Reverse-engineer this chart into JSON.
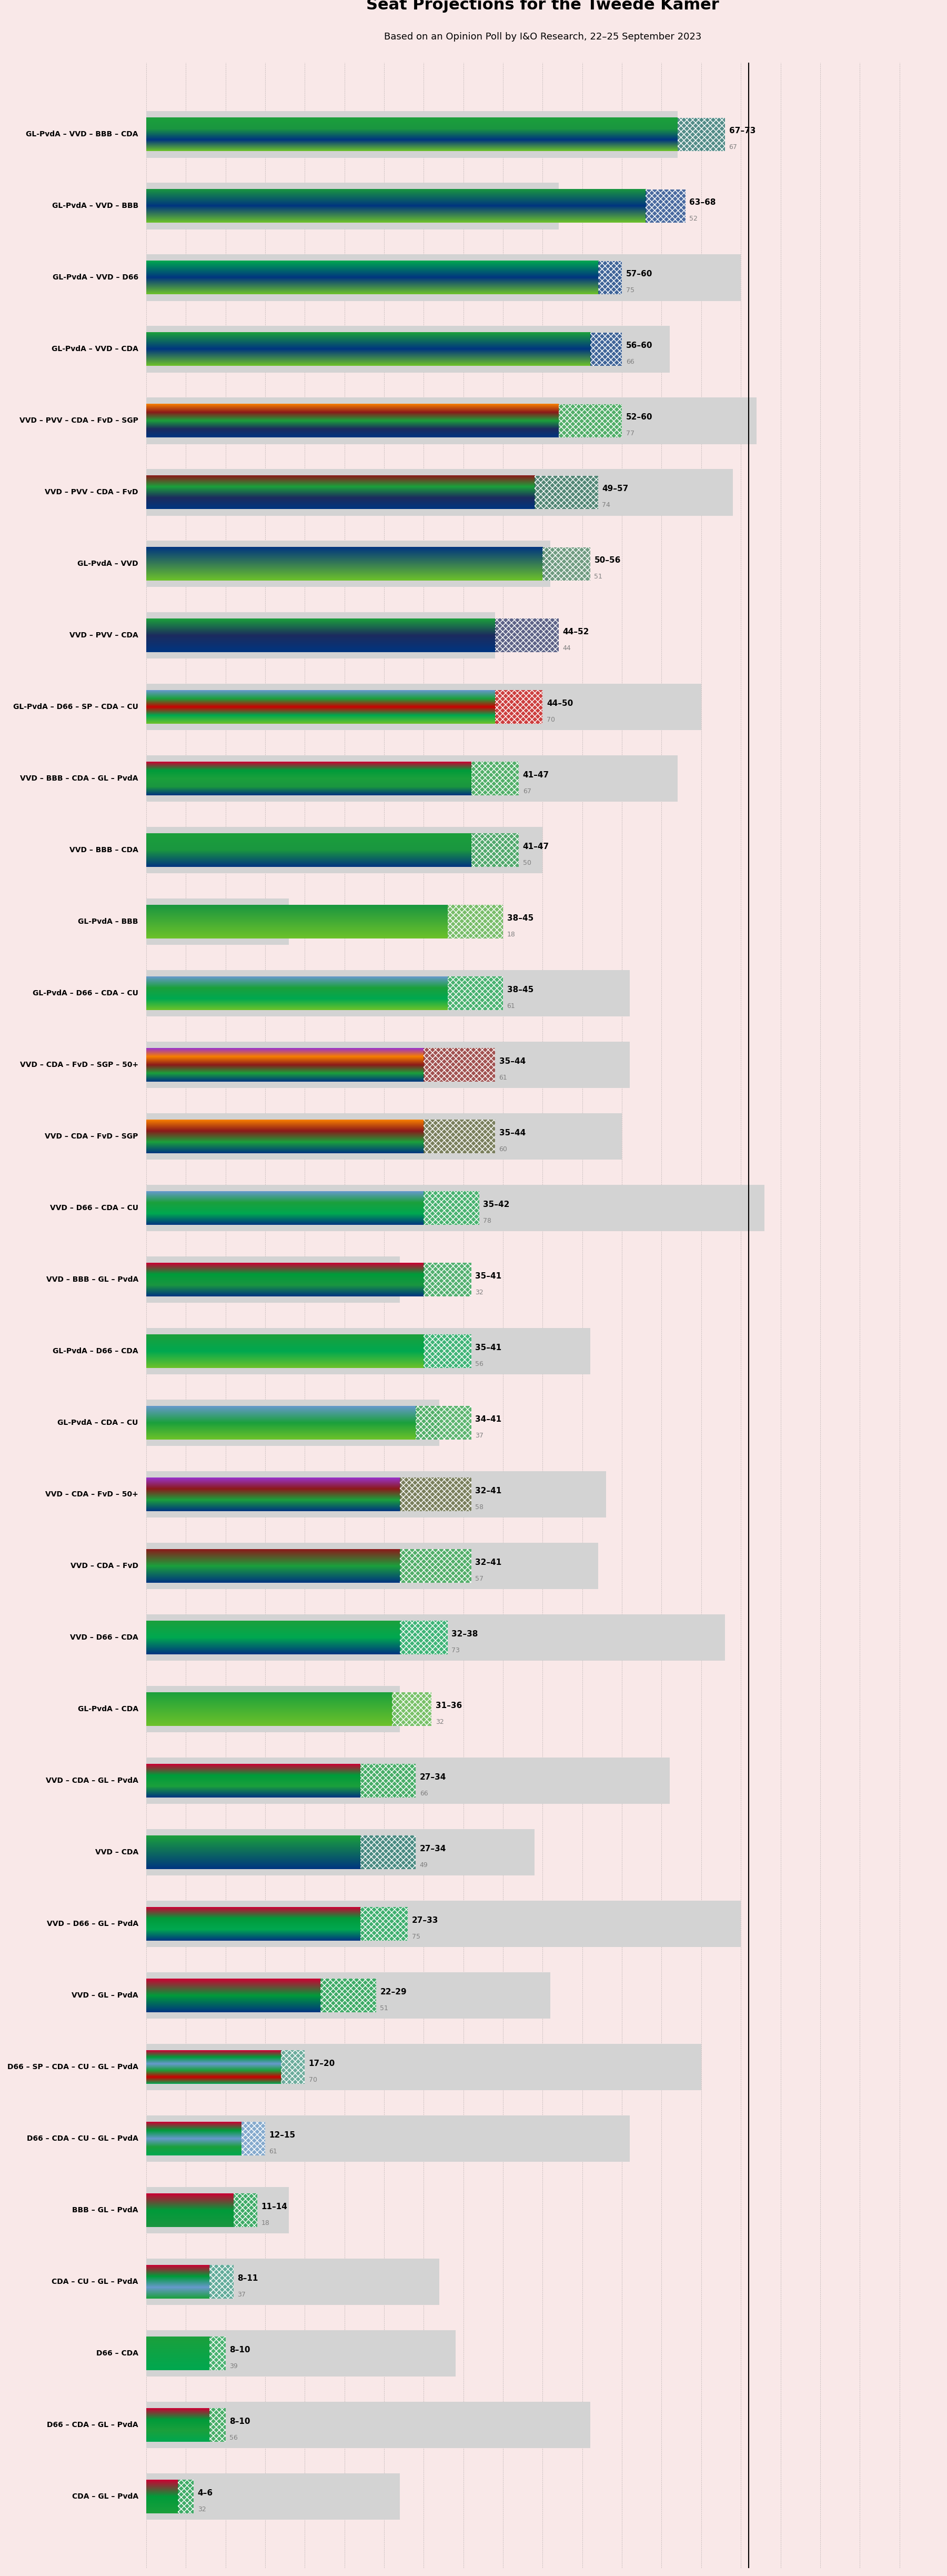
{
  "title": "Seat Projections for the Tweede Kamer",
  "subtitle": "Based on an Opinion Poll by I&O Research, 22–25 September 2023",
  "background_color": "#f9e8e8",
  "bar_height": 0.55,
  "majority_line": 76,
  "x_max": 100,
  "coalitions": [
    {
      "name": "GL-PvdA – VVD – BBB – CDA",
      "low": 67,
      "high": 73,
      "median": 67,
      "last": null,
      "underline": false,
      "colors": [
        "#6dc22a",
        "#003580",
        "#1a9640",
        "#1ba03c"
      ]
    },
    {
      "name": "GL-PvdA – VVD – BBB",
      "low": 63,
      "high": 68,
      "median": 52,
      "last": null,
      "underline": false,
      "colors": [
        "#6dc22a",
        "#003580",
        "#1a9640"
      ]
    },
    {
      "name": "GL-PvdA – VVD – D66",
      "low": 57,
      "high": 60,
      "median": 75,
      "last": null,
      "underline": false,
      "colors": [
        "#6dc22a",
        "#003580",
        "#00a850"
      ]
    },
    {
      "name": "GL-PvdA – VVD – CDA",
      "low": 56,
      "high": 60,
      "median": 66,
      "last": null,
      "underline": false,
      "colors": [
        "#6dc22a",
        "#003580",
        "#1ba03c"
      ]
    },
    {
      "name": "VVD – PVV – CDA – FvD – SGP",
      "low": 52,
      "high": 60,
      "median": 77,
      "last": null,
      "underline": false,
      "colors": [
        "#003580",
        "#1c2b5e",
        "#1ba03c",
        "#8b1a1a",
        "#f77f00"
      ]
    },
    {
      "name": "VVD – PVV – CDA – FvD",
      "low": 49,
      "high": 57,
      "median": 74,
      "last": null,
      "underline": false,
      "colors": [
        "#003580",
        "#1c2b5e",
        "#1ba03c",
        "#8b1a1a"
      ]
    },
    {
      "name": "GL-PvdA – VVD",
      "low": 50,
      "high": 56,
      "median": 51,
      "last": null,
      "underline": false,
      "colors": [
        "#6dc22a",
        "#003580"
      ]
    },
    {
      "name": "VVD – PVV – CDA",
      "low": 44,
      "high": 52,
      "median": 44,
      "last": null,
      "underline": false,
      "colors": [
        "#003580",
        "#1c2b5e",
        "#1ba03c"
      ]
    },
    {
      "name": "GL-PvdA – D66 – SP – CDA – CU",
      "low": 44,
      "high": 50,
      "median": 70,
      "last": null,
      "underline": false,
      "colors": [
        "#6dc22a",
        "#00a850",
        "#cc0000",
        "#1ba03c",
        "#6699cc"
      ]
    },
    {
      "name": "VVD – BBB – CDA – GL – PvdA",
      "low": 41,
      "high": 47,
      "median": 67,
      "last": null,
      "underline": false,
      "colors": [
        "#003580",
        "#1a9640",
        "#1ba03c",
        "#009b3a",
        "#cc0033"
      ]
    },
    {
      "name": "VVD – BBB – CDA",
      "low": 41,
      "high": 47,
      "median": 50,
      "last": null,
      "underline": false,
      "colors": [
        "#003580",
        "#1a9640",
        "#1ba03c"
      ]
    },
    {
      "name": "GL-PvdA – BBB",
      "low": 38,
      "high": 45,
      "median": 18,
      "last": null,
      "underline": false,
      "colors": [
        "#6dc22a",
        "#1a9640"
      ]
    },
    {
      "name": "GL-PvdA – D66 – CDA – CU",
      "low": 38,
      "high": 45,
      "median": 61,
      "last": null,
      "underline": false,
      "colors": [
        "#6dc22a",
        "#00a850",
        "#1ba03c",
        "#6699cc"
      ]
    },
    {
      "name": "VVD – CDA – FvD – SGP – 50+",
      "low": 35,
      "high": 44,
      "median": 61,
      "last": null,
      "underline": false,
      "colors": [
        "#003580",
        "#1ba03c",
        "#8b1a1a",
        "#f77f00",
        "#9933cc"
      ]
    },
    {
      "name": "VVD – CDA – FvD – SGP",
      "low": 35,
      "high": 44,
      "median": 60,
      "last": null,
      "underline": false,
      "colors": [
        "#003580",
        "#1ba03c",
        "#8b1a1a",
        "#f77f00"
      ]
    },
    {
      "name": "VVD – D66 – CDA – CU",
      "low": 35,
      "high": 42,
      "median": 78,
      "last": null,
      "underline": true,
      "colors": [
        "#003580",
        "#00a850",
        "#1ba03c",
        "#6699cc"
      ]
    },
    {
      "name": "VVD – BBB – GL – PvdA",
      "low": 35,
      "high": 41,
      "median": 32,
      "last": null,
      "underline": false,
      "colors": [
        "#003580",
        "#1a9640",
        "#009b3a",
        "#cc0033"
      ]
    },
    {
      "name": "GL-PvdA – D66 – CDA",
      "low": 35,
      "high": 41,
      "median": 56,
      "last": null,
      "underline": false,
      "colors": [
        "#6dc22a",
        "#00a850",
        "#1ba03c"
      ]
    },
    {
      "name": "GL-PvdA – CDA – CU",
      "low": 34,
      "high": 41,
      "median": 37,
      "last": null,
      "underline": false,
      "colors": [
        "#6dc22a",
        "#1ba03c",
        "#6699cc"
      ]
    },
    {
      "name": "VVD – CDA – FvD – 50+",
      "low": 32,
      "high": 41,
      "median": 58,
      "last": null,
      "underline": false,
      "colors": [
        "#003580",
        "#1ba03c",
        "#8b1a1a",
        "#9933cc"
      ]
    },
    {
      "name": "VVD – CDA – FvD",
      "low": 32,
      "high": 41,
      "median": 57,
      "last": null,
      "underline": false,
      "colors": [
        "#003580",
        "#1ba03c",
        "#8b1a1a"
      ]
    },
    {
      "name": "VVD – D66 – CDA",
      "low": 32,
      "high": 38,
      "median": 73,
      "last": null,
      "underline": false,
      "colors": [
        "#003580",
        "#00a850",
        "#1ba03c"
      ]
    },
    {
      "name": "GL-PvdA – CDA",
      "low": 31,
      "high": 36,
      "median": 32,
      "last": null,
      "underline": false,
      "colors": [
        "#6dc22a",
        "#1ba03c"
      ]
    },
    {
      "name": "VVD – CDA – GL – PvdA",
      "low": 27,
      "high": 34,
      "median": 66,
      "last": null,
      "underline": false,
      "colors": [
        "#003580",
        "#1ba03c",
        "#009b3a",
        "#cc0033"
      ]
    },
    {
      "name": "VVD – CDA",
      "low": 27,
      "high": 34,
      "median": 49,
      "last": null,
      "underline": false,
      "colors": [
        "#003580",
        "#1ba03c"
      ]
    },
    {
      "name": "VVD – D66 – GL – PvdA",
      "low": 27,
      "high": 33,
      "median": 75,
      "last": null,
      "underline": false,
      "colors": [
        "#003580",
        "#00a850",
        "#009b3a",
        "#cc0033"
      ]
    },
    {
      "name": "VVD – GL – PvdA",
      "low": 22,
      "high": 29,
      "median": 51,
      "last": null,
      "underline": false,
      "colors": [
        "#003580",
        "#009b3a",
        "#cc0033"
      ]
    },
    {
      "name": "D66 – SP – CDA – CU – GL – PvdA",
      "low": 17,
      "high": 20,
      "median": 70,
      "last": null,
      "underline": false,
      "colors": [
        "#00a850",
        "#cc0000",
        "#1ba03c",
        "#6699cc",
        "#009b3a",
        "#cc0033"
      ]
    },
    {
      "name": "D66 – CDA – CU – GL – PvdA",
      "low": 12,
      "high": 15,
      "median": 61,
      "last": null,
      "underline": false,
      "colors": [
        "#00a850",
        "#1ba03c",
        "#6699cc",
        "#009b3a",
        "#cc0033"
      ]
    },
    {
      "name": "BBB – GL – PvdA",
      "low": 11,
      "high": 14,
      "median": 18,
      "last": null,
      "underline": false,
      "colors": [
        "#1a9640",
        "#009b3a",
        "#cc0033"
      ]
    },
    {
      "name": "CDA – CU – GL – PvdA",
      "low": 8,
      "high": 11,
      "median": 37,
      "last": null,
      "underline": false,
      "colors": [
        "#1ba03c",
        "#6699cc",
        "#009b3a",
        "#cc0033"
      ]
    },
    {
      "name": "D66 – CDA",
      "low": 8,
      "high": 10,
      "median": 39,
      "last": null,
      "underline": false,
      "colors": [
        "#00a850",
        "#1ba03c"
      ]
    },
    {
      "name": "D66 – CDA – GL – PvdA",
      "low": 8,
      "high": 10,
      "median": 56,
      "last": null,
      "underline": false,
      "colors": [
        "#00a850",
        "#1ba03c",
        "#009b3a",
        "#cc0033"
      ]
    },
    {
      "name": "CDA – GL – PvdA",
      "low": 4,
      "high": 6,
      "median": 32,
      "last": null,
      "underline": false,
      "colors": [
        "#1ba03c",
        "#009b3a",
        "#cc0033"
      ]
    }
  ]
}
